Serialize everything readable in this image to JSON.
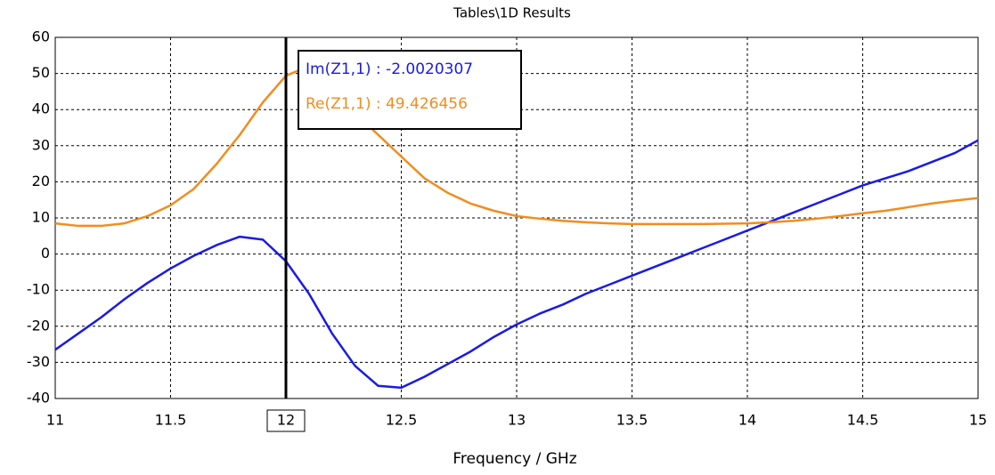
{
  "chart_data": {
    "type": "line",
    "title": "Tables\\1D Results",
    "xlabel": "Frequency / GHz",
    "x": [
      11.0,
      11.1,
      11.2,
      11.3,
      11.4,
      11.5,
      11.6,
      11.7,
      11.8,
      11.9,
      12.0,
      12.1,
      12.2,
      12.3,
      12.4,
      12.5,
      12.6,
      12.7,
      12.8,
      12.9,
      13.0,
      13.1,
      13.2,
      13.3,
      13.4,
      13.5,
      13.6,
      13.7,
      13.8,
      13.9,
      14.0,
      14.1,
      14.2,
      14.3,
      14.4,
      14.5,
      14.6,
      14.7,
      14.8,
      14.9,
      15.0
    ],
    "series": [
      {
        "color": "#1a1ae6",
        "values": [
          -26.5,
          -22,
          -17.5,
          -12.5,
          -8,
          -4,
          -0.5,
          2.5,
          4.8,
          4,
          -2,
          -11,
          -22,
          -31,
          -36.5,
          -37,
          -34,
          -30.5,
          -27,
          -23,
          -19.5,
          -16.5,
          -14,
          -11,
          -8.5,
          -6,
          -3.5,
          -1,
          1.5,
          4,
          6.5,
          9,
          11.5,
          14,
          16.5,
          19,
          21,
          23,
          25.5,
          28,
          31.5
        ]
      },
      {
        "color": "#f28c1f",
        "values": [
          8.5,
          7.8,
          7.8,
          8.5,
          10.5,
          13.5,
          18,
          25,
          33,
          42,
          49.4,
          52,
          46,
          39,
          33,
          27,
          21,
          17,
          14,
          12,
          10.5,
          9.8,
          9.2,
          8.8,
          8.5,
          8.3,
          8.3,
          8.3,
          8.3,
          8.4,
          8.5,
          8.8,
          9.2,
          9.8,
          10.5,
          11.3,
          12,
          13,
          14,
          14.8,
          15.5
        ]
      }
    ],
    "xlim": [
      11,
      15
    ],
    "ylim": [
      -40,
      60
    ],
    "xticks": [
      11,
      11.5,
      12,
      12.5,
      13,
      13.5,
      14,
      14.5,
      15
    ],
    "yticks": [
      -40,
      -30,
      -20,
      -10,
      0,
      10,
      20,
      30,
      40,
      50,
      60
    ],
    "grid": true,
    "marker": {
      "x": 12,
      "readouts": [
        {
          "text": "Im(Z1,1) : -2.0020307",
          "color": "#1a1ae6"
        },
        {
          "text": "Re(Z1,1) : 49.426456",
          "color": "#f28c1f"
        }
      ]
    }
  }
}
